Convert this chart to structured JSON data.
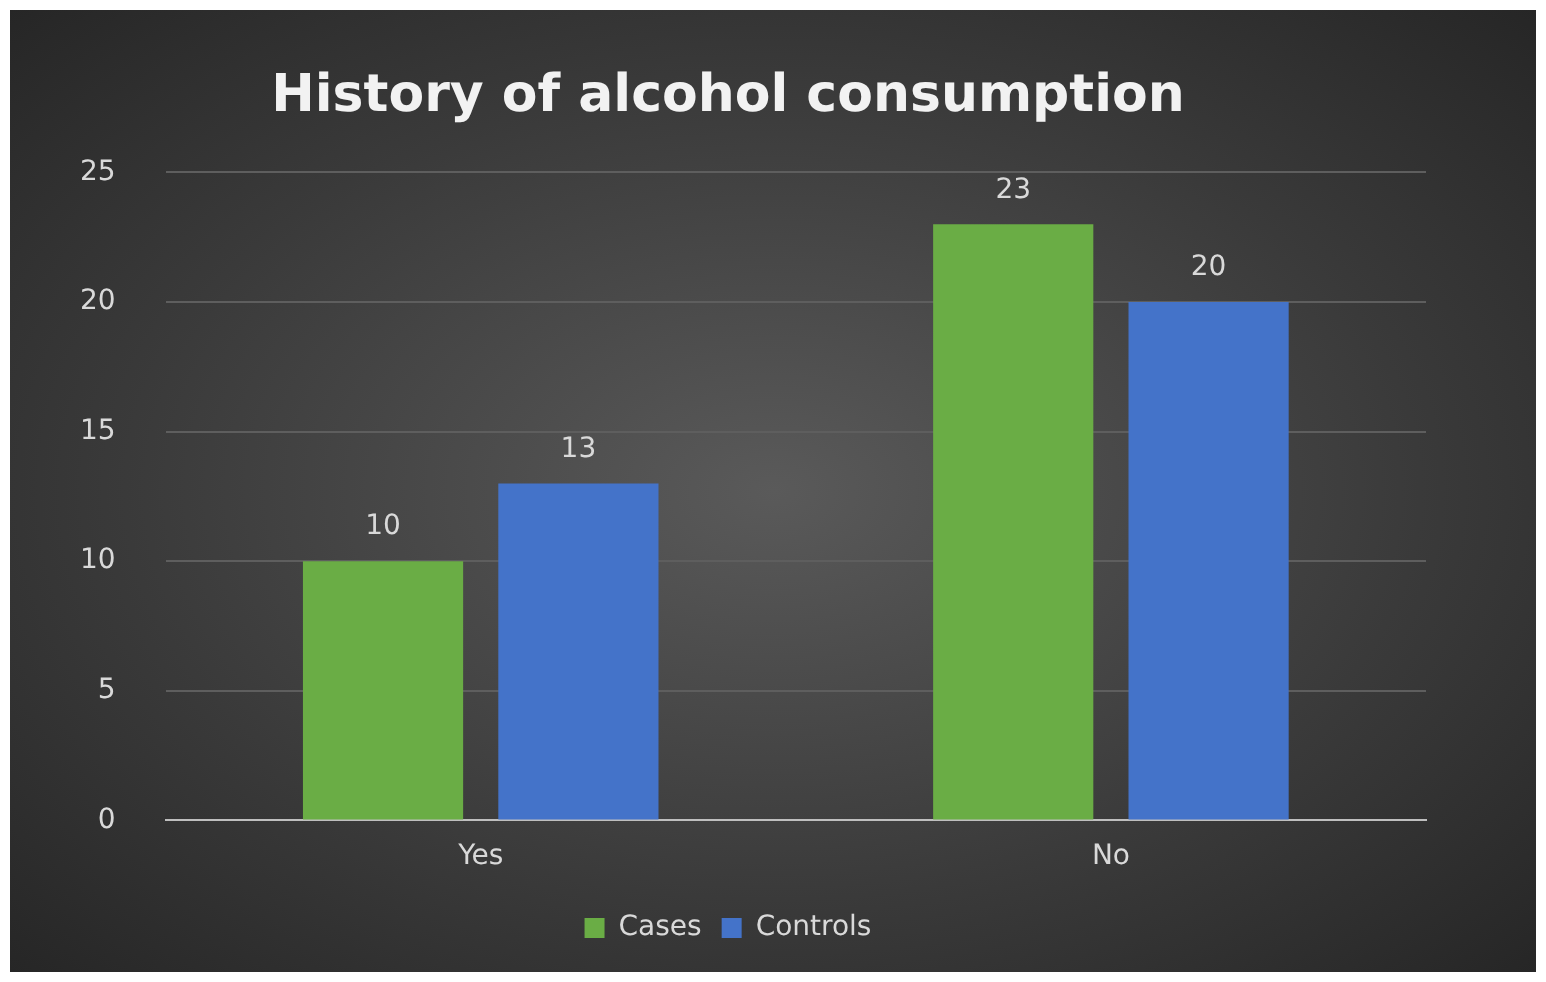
{
  "chart_data": {
    "type": "bar",
    "title": "History of alcohol consumption",
    "categories": [
      "Yes",
      "No"
    ],
    "series": [
      {
        "name": "Cases",
        "color": "#6aad45",
        "values": [
          10,
          23
        ]
      },
      {
        "name": "Controls",
        "color": "#4473c9",
        "values": [
          13,
          20
        ]
      }
    ],
    "ylim": [
      0,
      25
    ],
    "yticks": [
      0,
      5,
      10,
      15,
      20,
      25
    ],
    "grid": "y",
    "legend": "bottom",
    "data_labels": true
  }
}
